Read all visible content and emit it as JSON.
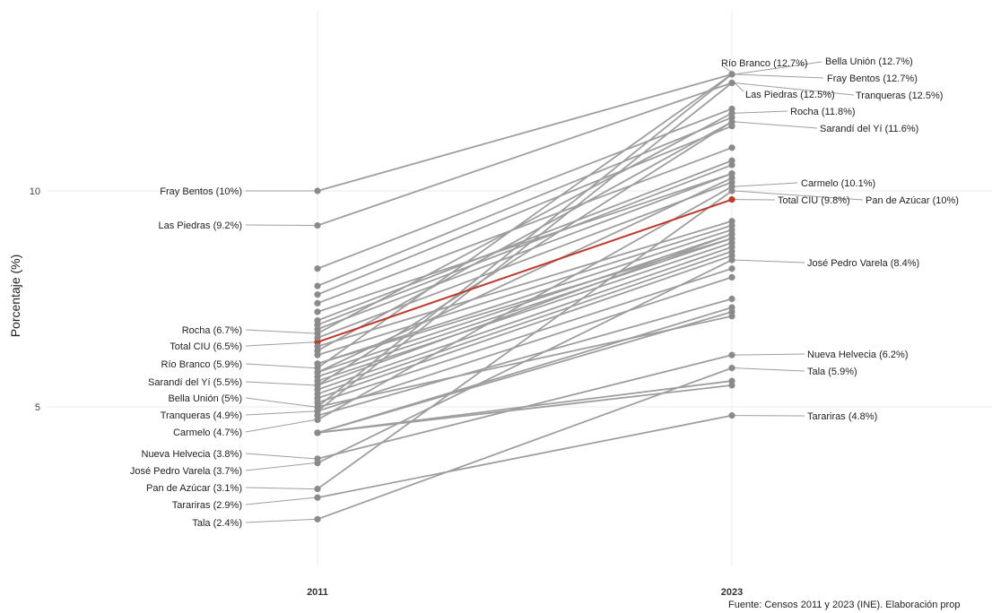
{
  "chart_data": {
    "type": "line",
    "subtype": "slopegraph",
    "x": [
      "2011",
      "2023"
    ],
    "ylabel": "Porcentaje (%)",
    "yticks": [
      5,
      10
    ],
    "ylim": [
      1.6,
      14.2
    ],
    "grid": true,
    "highlight_color": "#c0392b",
    "line_color": "#9e9e9e",
    "caption": "Fuente: Censos 2011 y 2023 (INE). Elaboración prop",
    "labels_2011": [
      {
        "text": "Fray Bentos (10%)",
        "value": 10.0
      },
      {
        "text": "Las Piedras (9.2%)",
        "value": 9.2
      },
      {
        "text": "Rocha (6.7%)",
        "value": 6.7
      },
      {
        "text": "Total CIU (6.5%)",
        "value": 6.5
      },
      {
        "text": "Río Branco (5.9%)",
        "value": 5.9
      },
      {
        "text": "Sarandí del Yí (5.5%)",
        "value": 5.5
      },
      {
        "text": "Bella Unión (5%)",
        "value": 5.0
      },
      {
        "text": "Tranqueras (4.9%)",
        "value": 4.9
      },
      {
        "text": "Carmelo (4.7%)",
        "value": 4.7
      },
      {
        "text": "Nueva Helvecia (3.8%)",
        "value": 3.8
      },
      {
        "text": "José Pedro Varela (3.7%)",
        "value": 3.7
      },
      {
        "text": "Pan de Azúcar (3.1%)",
        "value": 3.1
      },
      {
        "text": "Tarariras (2.9%)",
        "value": 2.9
      },
      {
        "text": "Tala (2.4%)",
        "value": 2.4
      }
    ],
    "labels_2023": [
      {
        "text": "Río Branco (12.7%)",
        "value": 12.7
      },
      {
        "text": "Bella Unión (12.7%)",
        "value": 12.7
      },
      {
        "text": "Fray Bentos (12.7%)",
        "value": 12.7
      },
      {
        "text": "Las Piedras (12.5%)",
        "value": 12.5
      },
      {
        "text": "Tranqueras (12.5%)",
        "value": 12.5
      },
      {
        "text": "Rocha (11.8%)",
        "value": 11.8
      },
      {
        "text": "Sarandí del Yí (11.6%)",
        "value": 11.6
      },
      {
        "text": "Carmelo (10.1%)",
        "value": 10.1
      },
      {
        "text": "Total CIU (9.8%)",
        "value": 9.8
      },
      {
        "text": "Pan de Azúcar (10%)",
        "value": 10.0
      },
      {
        "text": "José Pedro Varela (8.4%)",
        "value": 8.4
      },
      {
        "text": "Nueva Helvecia (6.2%)",
        "value": 6.2
      },
      {
        "text": "Tala (5.9%)",
        "value": 5.9
      },
      {
        "text": "Tarariras (4.8%)",
        "value": 4.8
      }
    ],
    "series": [
      {
        "y2011": 10.0,
        "y2023": 12.7
      },
      {
        "y2011": 9.2,
        "y2023": 12.5
      },
      {
        "y2011": 6.7,
        "y2023": 11.8
      },
      {
        "y2011": 6.5,
        "y2023": 9.8,
        "highlight": true
      },
      {
        "y2011": 5.9,
        "y2023": 12.7
      },
      {
        "y2011": 5.5,
        "y2023": 11.6
      },
      {
        "y2011": 5.0,
        "y2023": 12.7
      },
      {
        "y2011": 4.9,
        "y2023": 12.5
      },
      {
        "y2011": 4.7,
        "y2023": 10.1
      },
      {
        "y2011": 3.8,
        "y2023": 6.2
      },
      {
        "y2011": 3.7,
        "y2023": 8.4
      },
      {
        "y2011": 3.1,
        "y2023": 10.0
      },
      {
        "y2011": 2.9,
        "y2023": 4.8
      },
      {
        "y2011": 2.4,
        "y2023": 5.9
      },
      {
        "y2011": 8.2,
        "y2023": 11.9
      },
      {
        "y2011": 7.8,
        "y2023": 11.7
      },
      {
        "y2011": 7.6,
        "y2023": 11.5
      },
      {
        "y2011": 7.4,
        "y2023": 11.0
      },
      {
        "y2011": 7.0,
        "y2023": 10.7
      },
      {
        "y2011": 6.9,
        "y2023": 10.6
      },
      {
        "y2011": 6.8,
        "y2023": 10.4
      },
      {
        "y2011": 6.6,
        "y2023": 10.2
      },
      {
        "y2011": 6.4,
        "y2023": 9.3
      },
      {
        "y2011": 6.2,
        "y2023": 9.2
      },
      {
        "y2011": 6.0,
        "y2023": 9.1
      },
      {
        "y2011": 5.8,
        "y2023": 9.0
      },
      {
        "y2011": 5.7,
        "y2023": 8.9
      },
      {
        "y2011": 5.6,
        "y2023": 8.8
      },
      {
        "y2011": 5.4,
        "y2023": 8.7
      },
      {
        "y2011": 5.3,
        "y2023": 8.6
      },
      {
        "y2011": 5.2,
        "y2023": 8.5
      },
      {
        "y2011": 5.1,
        "y2023": 8.2
      },
      {
        "y2011": 4.9,
        "y2023": 8.0
      },
      {
        "y2011": 4.8,
        "y2023": 7.5
      },
      {
        "y2011": 4.4,
        "y2023": 7.3
      },
      {
        "y2011": 4.4,
        "y2023": 7.2
      },
      {
        "y2011": 4.4,
        "y2023": 5.6
      },
      {
        "y2011": 4.4,
        "y2023": 5.5
      },
      {
        "y2011": 5.0,
        "y2023": 7.1
      },
      {
        "y2011": 6.0,
        "y2023": 8.9
      },
      {
        "y2011": 5.5,
        "y2023": 9.0
      },
      {
        "y2011": 7.2,
        "y2023": 10.4
      },
      {
        "y2011": 6.3,
        "y2023": 11.6
      },
      {
        "y2011": 5.8,
        "y2023": 10.3
      }
    ]
  }
}
